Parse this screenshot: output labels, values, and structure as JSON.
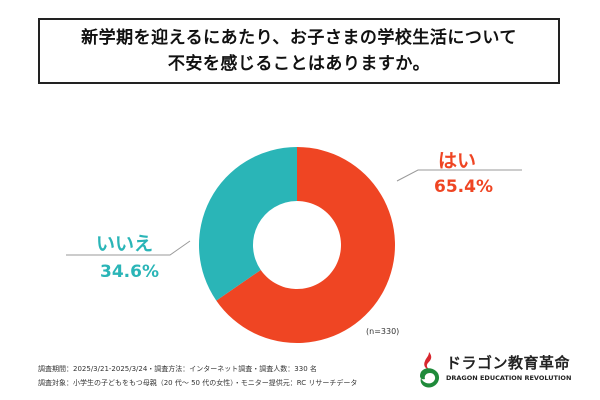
{
  "title": {
    "line1": "新学期を迎えるにあたり、お子さまの学校生活について",
    "line2": "不安を感じることはありますか。"
  },
  "chart_data": {
    "type": "pie",
    "donut": true,
    "slices": [
      {
        "label": "はい",
        "value": 65.4,
        "display": "65.4%",
        "color": "#ef4523"
      },
      {
        "label": "いいえ",
        "value": 34.6,
        "display": "34.6%",
        "color": "#2ab5b7"
      }
    ],
    "legend": "none",
    "n_label": "(n=330)"
  },
  "footer": {
    "line1": "調査期間：2025/3/21-2025/3/24・調査方法：インターネット調査・調査人数：330 名",
    "line2": "調査対象：小学生の子どもをもつ母親（20 代～ 50 代の女性）・モニター提供元：RC リサーチデータ"
  },
  "logo": {
    "name_jp": "ドラゴン教育革命",
    "name_en": "DRAGON EDUCATION REVOLUTION",
    "mark_icon": "dragon-icon",
    "colors": {
      "red": "#d8262e",
      "green": "#1f8a3a"
    }
  }
}
